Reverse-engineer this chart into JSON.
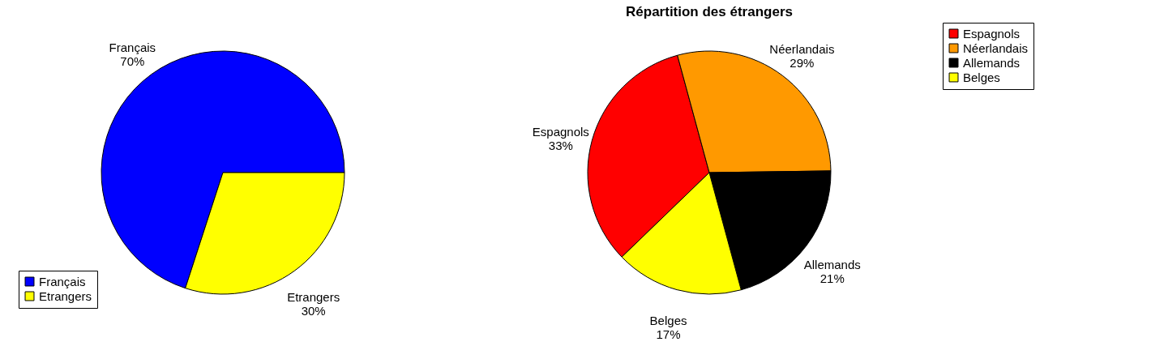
{
  "chart_data": [
    {
      "type": "pie",
      "categories": [
        "Français",
        "Etrangers"
      ],
      "values": [
        70,
        30
      ],
      "value_labels": [
        "70%",
        "30%"
      ],
      "colors": [
        "#0000ff",
        "#ffff00"
      ],
      "legend": "bottom left"
    },
    {
      "type": "pie",
      "title": "Répartition des étrangers",
      "categories": [
        "Espagnols",
        "Néerlandais",
        "Allemands",
        "Belges"
      ],
      "values": [
        33,
        29,
        21,
        17
      ],
      "value_labels": [
        "33%",
        "29%",
        "21%",
        "17%"
      ],
      "colors": [
        "#ff0000",
        "#ff9900",
        "#000000",
        "#ffff00"
      ],
      "legend": "top right"
    }
  ]
}
